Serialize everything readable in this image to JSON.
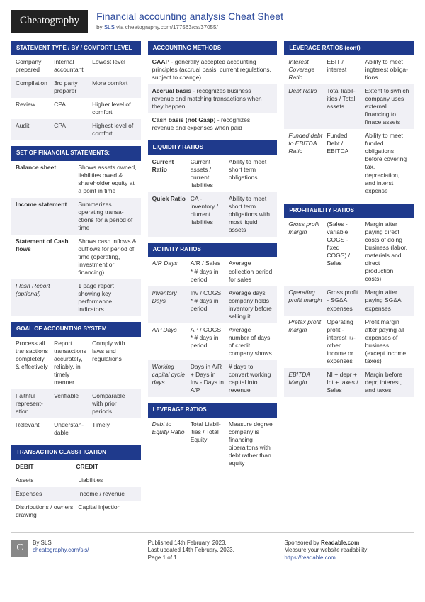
{
  "header": {
    "logo": "Cheatography",
    "title": "Financial accounting analysis Cheat Sheet",
    "by": "by ",
    "author": "SLS",
    "via": " via cheatography.com/177563/cs/37055/"
  },
  "cards": {
    "statementType": {
      "title": "STATEMENT TYPE / BY / COMFORT LEVEL",
      "rows": [
        [
          "Company prepared",
          "Internal accountant",
          "Lowest level"
        ],
        [
          "Compil­ation",
          "3rd party preparer",
          "More comfort"
        ],
        [
          "Review",
          "CPA",
          "Higher level of comfort"
        ],
        [
          "Audit",
          "CPA",
          "Highest level of comfort"
        ]
      ]
    },
    "setFinStmt": {
      "title": "SET OF FINANCIAL STATEMENTS:",
      "rows": [
        [
          "Balance sheet",
          "Shows assets owned, liabilities owed & shareholder equity at a point in time"
        ],
        [
          "Income statement",
          "Summarizes operating transa­ctions for a period of time"
        ],
        [
          "Statement of Cash flows",
          "Shows cash inflows & outflows for period of time (operating, investment or financing)"
        ],
        [
          "Flash Report (optional)",
          "1 page report showing key performance indicators"
        ]
      ]
    },
    "goal": {
      "title": "GOAL OF ACCOUNTING SYSTEM",
      "rows": [
        [
          "Process all transactions completely & effectively",
          "Report transactions accurately, reliably, in timely manner",
          "Comply with laws and regulations"
        ],
        [
          "Faithful repres­ent­ation",
          "Verifiable",
          "Comparable with prior periods"
        ],
        [
          "Relevant",
          "Unders­tan­dable",
          "Timely"
        ]
      ]
    },
    "txnClass": {
      "title": "TRANSACTION CLASSIFICATION",
      "head": [
        "DEBIT",
        "CREDIT"
      ],
      "rows": [
        [
          "Assets",
          "Liabilities"
        ],
        [
          "Expenses",
          "Income / revenue"
        ],
        [
          "Distributions / owners drawing",
          "Capital injection"
        ]
      ]
    },
    "acctMethods": {
      "title": "ACCOUNTING METHODS",
      "rows": [
        [
          "<b>GAAP</b> - generally accepted accounting principles (accrual basis, current regula­tions, subject to change)"
        ],
        [
          "<b>Accrual basis</b> - recognizes business revenue and matching transactions when they happen"
        ],
        [
          "<b>Cash basis (not Gaap)</b> - recognizes revenue and expenses when paid"
        ]
      ]
    },
    "liquidity": {
      "title": "LIQUIDITY RATIOS",
      "rows": [
        [
          "Current Ratio",
          "Current assets / current liabilities",
          "Ability to meet short term obligations"
        ],
        [
          "Quick Ratio",
          "CA - inventory / ciurrent liabilities",
          "Ability to meet short term obligations with most liquid assets"
        ]
      ]
    },
    "activity": {
      "title": "ACTIVITY RATIOS",
      "rows": [
        [
          "A/R Days",
          "A/R / Sales * # days in period",
          "Average collection period for sales"
        ],
        [
          "Inventory Days",
          "Inv / COGS * # days in period",
          "Average days company holds inventory before selling it."
        ],
        [
          "A/P Days",
          "AP / COGS * # days in period",
          "Average number of days of credit company shows"
        ],
        [
          "Working capital cycle days",
          "Days in A/R + Days in Inv - Days in A/P",
          "# days to convert working capital into revenue"
        ]
      ]
    },
    "leverage": {
      "title": "LEVERAGE RATIOS",
      "rows": [
        [
          "Debt to Equity Ratio",
          "Total Liabil­ities / Total Equity",
          "Measure degree company is financing oiperaitons with debt rather than equity"
        ]
      ]
    },
    "leverageCont": {
      "title": "LEVERAGE RATIOS (cont)",
      "rows": [
        [
          "Interest Coverage Ratio",
          "EBIT / interest",
          "Ability to meet ingterest obliga­tions."
        ],
        [
          "Debt Ratio",
          "Total liabil­ities / Total assets",
          "Extent to swhich company uses external financing to finace assets"
        ],
        [
          "Funded debt to EBITDA Ratio",
          "Funded Debt / EBITDA",
          "Ability to meet funded obligations before covering tax, depreciation, and interst expense"
        ]
      ]
    },
    "profitability": {
      "title": "PROFITABILITY RATIOS",
      "rows": [
        [
          "Gross profit margin",
          "(Sales - variable COGS - fixed COGS) / Sales",
          "Margin after paying direct costs of doing business (labor, materials and direct production costs)"
        ],
        [
          "Operating profit margin",
          "Gross profit - SG&A expenses",
          "Margin after paying SG&A expenses"
        ],
        [
          "Pretax profit margin",
          "Operating profit - interest +/- other income or expenses",
          "Profit margin after paying all expenses of business (except income taxes)"
        ],
        [
          "EBITDA Margin",
          "NI + depr + Int + taxes / Sales",
          "Margin before depr, interest, and taxes"
        ]
      ]
    }
  },
  "footer": {
    "by": "By SLS",
    "byUrl": "cheatography.com/sls/",
    "pub": "Published 14th February, 2023.",
    "upd": "Last updated 14th February, 2023.",
    "page": "Page 1 of 1.",
    "spons": "Sponsored by ",
    "sponsName": "Readable.com",
    "sponsTag": "Measure your website readability!",
    "sponsUrl": "https://readable.com"
  }
}
